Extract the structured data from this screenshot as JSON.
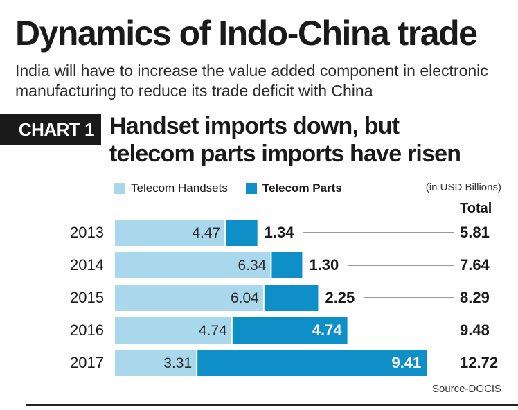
{
  "header": {
    "title": "Dynamics of Indo-China trade",
    "subtitle": "India will have to increase the value added component in electronic manufacturing to reduce its trade deficit with China",
    "badge": "CHART 1",
    "chart_heading_line1": "Handset imports down, but",
    "chart_heading_line2": "telecom parts imports have risen"
  },
  "legend": {
    "handsets_label": "Telecom Handsets",
    "parts_label": "Telecom Parts"
  },
  "unit_note": "(in USD Billions)",
  "total_header": "Total",
  "source": "Source-DGCIS",
  "colors": {
    "handsets": "#a9d7ec",
    "parts": "#0f8fc7"
  },
  "chart_data": {
    "type": "bar",
    "orientation": "horizontal",
    "stacked": true,
    "categories": [
      "2013",
      "2014",
      "2015",
      "2016",
      "2017"
    ],
    "series": [
      {
        "name": "Telecom Handsets",
        "values": [
          4.47,
          6.34,
          6.04,
          4.74,
          3.31
        ]
      },
      {
        "name": "Telecom Parts",
        "values": [
          1.34,
          1.3,
          2.25,
          4.74,
          9.41
        ]
      }
    ],
    "totals": [
      "5.81",
      "7.64",
      "8.29",
      "9.48",
      "12.72"
    ],
    "handset_labels": [
      "4.47",
      "6.34",
      "6.04",
      "4.74",
      "3.31"
    ],
    "parts_labels": [
      "1.34",
      "1.30",
      "2.25",
      "4.74",
      "9.41"
    ],
    "xlim": [
      0,
      12.72
    ]
  }
}
